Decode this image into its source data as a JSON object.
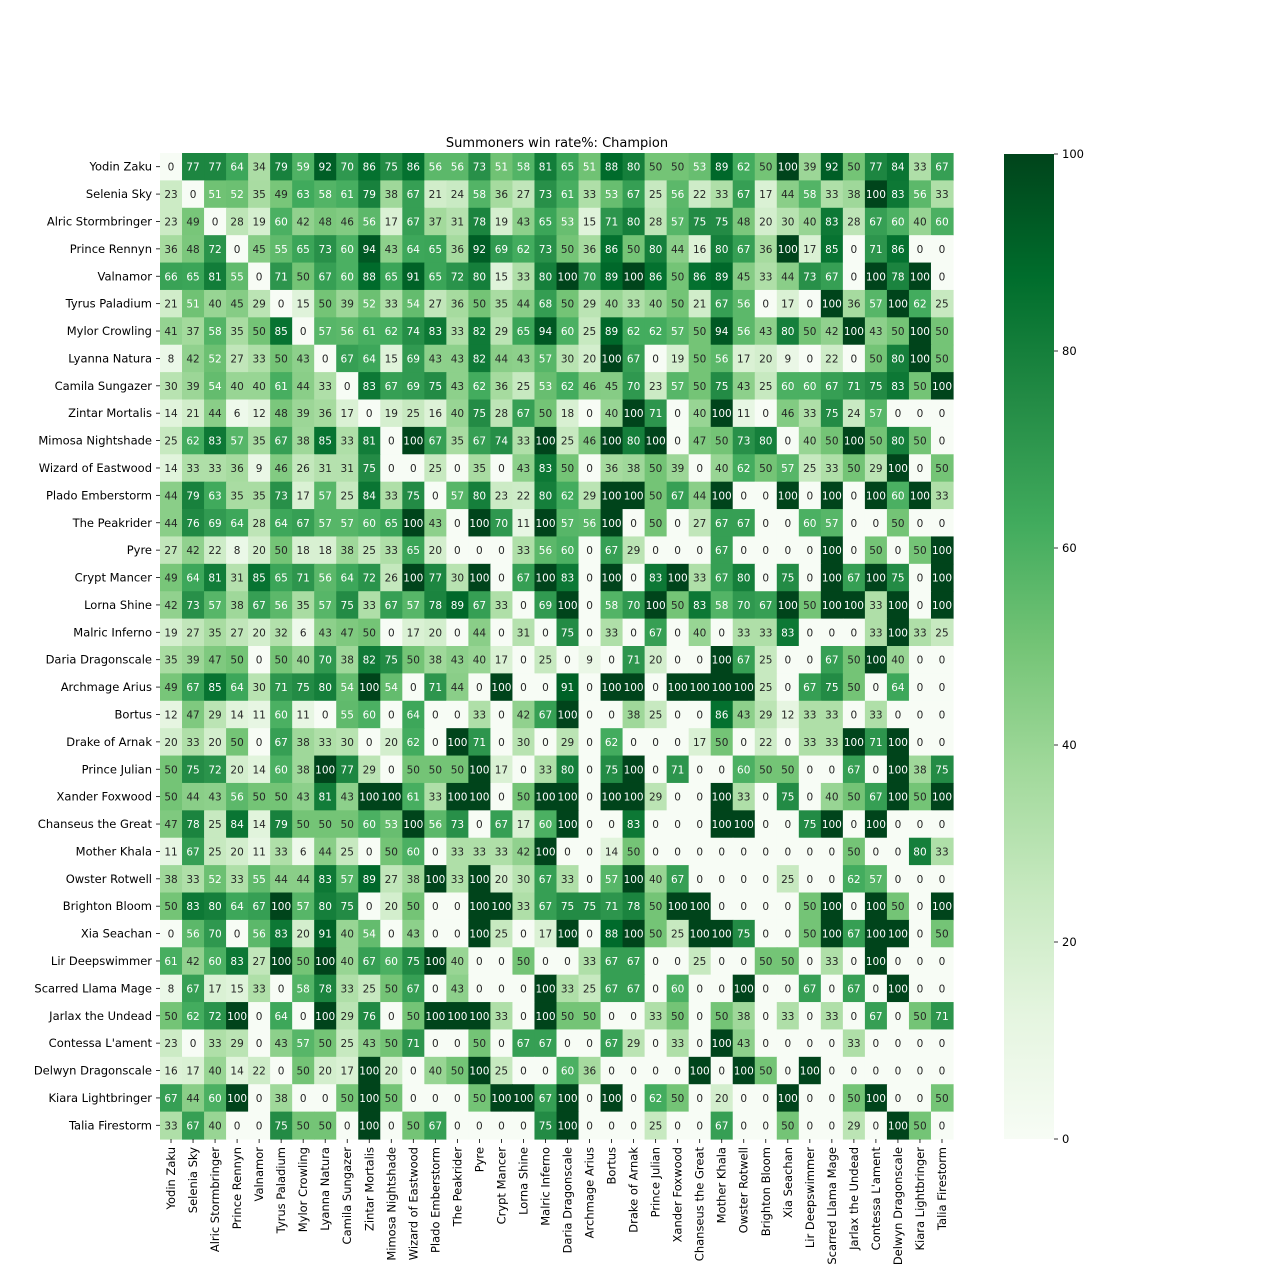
{
  "chart_data": {
    "type": "heatmap",
    "title": "Summoners win rate%: Champion",
    "xlabel": "",
    "ylabel": "",
    "rows": [
      "Yodin Zaku",
      "Selenia Sky",
      "Alric Stormbringer",
      "Prince Rennyn",
      "Valnamor",
      "Tyrus Paladium",
      "Mylor Crowling",
      "Lyanna Natura",
      "Camila Sungazer",
      "Zintar Mortalis",
      "Mimosa Nightshade",
      "Wizard of Eastwood",
      "Plado Emberstorm",
      "The Peakrider",
      "Pyre",
      "Crypt Mancer",
      "Lorna Shine",
      "Malric Inferno",
      "Daria Dragonscale",
      "Archmage Arius",
      "Bortus",
      "Drake of Arnak",
      "Prince Julian",
      "Xander Foxwood",
      "Chanseus the Great",
      "Mother Khala",
      "Owster Rotwell",
      "Brighton Bloom",
      "Xia Seachan",
      "Lir Deepswimmer",
      "Scarred Llama Mage",
      "Jarlax the Undead",
      "Contessa L'ament",
      "Delwyn Dragonscale",
      "Kiara Lightbringer",
      "Talia Firestorm"
    ],
    "columns": [
      "Yodin Zaku",
      "Selenia Sky",
      "Alric Stormbringer",
      "Prince Rennyn",
      "Valnamor",
      "Tyrus Paladium",
      "Mylor Crowling",
      "Lyanna Natura",
      "Camila Sungazer",
      "Zintar Mortalis",
      "Mimosa Nightshade",
      "Wizard of Eastwood",
      "Plado Emberstorm",
      "The Peakrider",
      "Pyre",
      "Crypt Mancer",
      "Lorna Shine",
      "Malric Inferno",
      "Daria Dragonscale",
      "Archmage Arius",
      "Bortus",
      "Drake of Arnak",
      "Prince Julian",
      "Xander Foxwood",
      "Chanseus the Great",
      "Mother Khala",
      "Owster Rotwell",
      "Brighton Bloom",
      "Xia Seachan",
      "Lir Deepswimmer",
      "Scarred Llama Mage",
      "Jarlax the Undead",
      "Contessa L'ament",
      "Delwyn Dragonscale",
      "Kiara Lightbringer",
      "Talia Firestorm"
    ],
    "values": [
      [
        0,
        77,
        77,
        64,
        34,
        79,
        59,
        92,
        70,
        86,
        75,
        86,
        56,
        56,
        73,
        51,
        58,
        81,
        65,
        51,
        88,
        80,
        50,
        50,
        53,
        89,
        62,
        50,
        100,
        39,
        92,
        50,
        77,
        84,
        33,
        67
      ],
      [
        23,
        0,
        51,
        52,
        35,
        49,
        63,
        58,
        61,
        79,
        38,
        67,
        21,
        24,
        58,
        36,
        27,
        73,
        61,
        33,
        53,
        67,
        25,
        56,
        22,
        33,
        67,
        17,
        44,
        58,
        33,
        38,
        100,
        83,
        56,
        33
      ],
      [
        23,
        49,
        0,
        28,
        19,
        60,
        42,
        48,
        46,
        56,
        17,
        67,
        37,
        31,
        78,
        19,
        43,
        65,
        53,
        15,
        71,
        80,
        28,
        57,
        75,
        75,
        48,
        20,
        30,
        40,
        83,
        28,
        67,
        60,
        40,
        60
      ],
      [
        36,
        48,
        72,
        0,
        45,
        55,
        65,
        73,
        60,
        94,
        43,
        64,
        65,
        36,
        92,
        69,
        62,
        73,
        50,
        36,
        86,
        50,
        80,
        44,
        16,
        80,
        67,
        36,
        100,
        17,
        85,
        0,
        71,
        86,
        0,
        0
      ],
      [
        66,
        65,
        81,
        55,
        0,
        71,
        50,
        67,
        60,
        88,
        65,
        91,
        65,
        72,
        80,
        15,
        33,
        80,
        100,
        70,
        89,
        100,
        86,
        50,
        86,
        89,
        45,
        33,
        44,
        73,
        67,
        0,
        100,
        78,
        100,
        0
      ],
      [
        21,
        51,
        40,
        45,
        29,
        0,
        15,
        50,
        39,
        52,
        33,
        54,
        27,
        36,
        50,
        35,
        44,
        68,
        50,
        29,
        40,
        33,
        40,
        50,
        21,
        67,
        56,
        0,
        17,
        0,
        100,
        36,
        57,
        100,
        62,
        25
      ],
      [
        41,
        37,
        58,
        35,
        50,
        85,
        0,
        57,
        56,
        61,
        62,
        74,
        83,
        33,
        82,
        29,
        65,
        94,
        60,
        25,
        89,
        62,
        62,
        57,
        50,
        94,
        56,
        43,
        80,
        50,
        42,
        100,
        43,
        50,
        100,
        50
      ],
      [
        8,
        42,
        52,
        27,
        33,
        50,
        43,
        0,
        67,
        64,
        15,
        69,
        43,
        43,
        82,
        44,
        43,
        57,
        30,
        20,
        100,
        67,
        0,
        19,
        50,
        56,
        17,
        20,
        9,
        0,
        22,
        0,
        50,
        80,
        100,
        50
      ],
      [
        30,
        39,
        54,
        40,
        40,
        61,
        44,
        33,
        0,
        83,
        67,
        69,
        75,
        43,
        62,
        36,
        25,
        53,
        62,
        46,
        45,
        70,
        23,
        57,
        50,
        75,
        43,
        25,
        60,
        60,
        67,
        71,
        75,
        83,
        50,
        100
      ],
      [
        14,
        21,
        44,
        6,
        12,
        48,
        39,
        36,
        17,
        0,
        19,
        25,
        16,
        40,
        75,
        28,
        67,
        50,
        18,
        0,
        40,
        100,
        71,
        0,
        40,
        100,
        11,
        0,
        46,
        33,
        75,
        24,
        57,
        0,
        0,
        0
      ],
      [
        25,
        62,
        83,
        57,
        35,
        67,
        38,
        85,
        33,
        81,
        0,
        100,
        67,
        35,
        67,
        74,
        33,
        100,
        25,
        46,
        100,
        80,
        100,
        0,
        47,
        50,
        73,
        80,
        0,
        40,
        50,
        100,
        50,
        80,
        50,
        0
      ],
      [
        14,
        33,
        33,
        36,
        9,
        46,
        26,
        31,
        31,
        75,
        0,
        0,
        25,
        0,
        35,
        0,
        43,
        83,
        50,
        0,
        36,
        38,
        50,
        39,
        0,
        40,
        62,
        50,
        57,
        25,
        33,
        50,
        29,
        100,
        0,
        50
      ],
      [
        44,
        79,
        63,
        35,
        35,
        73,
        17,
        57,
        25,
        84,
        33,
        75,
        0,
        57,
        80,
        23,
        22,
        80,
        62,
        29,
        100,
        100,
        50,
        67,
        44,
        100,
        0,
        0,
        100,
        0,
        100,
        0,
        100,
        60,
        100,
        33
      ],
      [
        44,
        76,
        69,
        64,
        28,
        64,
        67,
        57,
        57,
        60,
        65,
        100,
        43,
        0,
        100,
        70,
        11,
        100,
        57,
        56,
        100,
        0,
        50,
        0,
        27,
        67,
        67,
        0,
        0,
        60,
        57,
        0,
        0,
        50,
        0,
        0
      ],
      [
        27,
        42,
        22,
        8,
        20,
        50,
        18,
        18,
        38,
        25,
        33,
        65,
        20,
        0,
        0,
        0,
        33,
        56,
        60,
        0,
        67,
        29,
        0,
        0,
        0,
        67,
        0,
        0,
        0,
        0,
        100,
        0,
        50,
        0,
        50,
        100
      ],
      [
        49,
        64,
        81,
        31,
        85,
        65,
        71,
        56,
        64,
        72,
        26,
        100,
        77,
        30,
        100,
        0,
        67,
        100,
        83,
        0,
        100,
        0,
        83,
        100,
        33,
        67,
        80,
        0,
        75,
        0,
        100,
        67,
        100,
        75,
        0,
        100
      ],
      [
        42,
        73,
        57,
        38,
        67,
        56,
        35,
        57,
        75,
        33,
        67,
        57,
        78,
        89,
        67,
        33,
        0,
        69,
        100,
        0,
        58,
        70,
        100,
        50,
        83,
        58,
        70,
        67,
        100,
        50,
        100,
        100,
        33,
        100,
        0,
        100
      ],
      [
        19,
        27,
        35,
        27,
        20,
        32,
        6,
        43,
        47,
        50,
        0,
        17,
        20,
        0,
        44,
        0,
        31,
        0,
        75,
        0,
        33,
        0,
        67,
        0,
        40,
        0,
        33,
        33,
        83,
        0,
        0,
        0,
        33,
        100,
        33,
        25
      ],
      [
        35,
        39,
        47,
        50,
        0,
        50,
        40,
        70,
        38,
        82,
        75,
        50,
        38,
        43,
        40,
        17,
        0,
        25,
        0,
        9,
        0,
        71,
        20,
        0,
        0,
        100,
        67,
        25,
        0,
        0,
        67,
        50,
        100,
        40,
        0,
        0
      ],
      [
        49,
        67,
        85,
        64,
        30,
        71,
        75,
        80,
        54,
        100,
        54,
        0,
        71,
        44,
        0,
        100,
        0,
        0,
        91,
        0,
        100,
        100,
        0,
        100,
        100,
        100,
        100,
        25,
        0,
        67,
        75,
        50,
        0,
        64,
        0,
        0
      ],
      [
        12,
        47,
        29,
        14,
        11,
        60,
        11,
        0,
        55,
        60,
        0,
        64,
        0,
        0,
        33,
        0,
        42,
        67,
        100,
        0,
        0,
        38,
        25,
        0,
        0,
        86,
        43,
        29,
        12,
        33,
        33,
        0,
        33,
        0,
        0,
        0
      ],
      [
        20,
        33,
        20,
        50,
        0,
        67,
        38,
        33,
        30,
        0,
        20,
        62,
        0,
        100,
        71,
        0,
        30,
        0,
        29,
        0,
        62,
        0,
        0,
        0,
        17,
        50,
        0,
        22,
        0,
        33,
        33,
        100,
        71,
        100,
        0,
        0
      ],
      [
        50,
        75,
        72,
        20,
        14,
        60,
        38,
        100,
        77,
        29,
        0,
        50,
        50,
        50,
        100,
        17,
        0,
        33,
        80,
        0,
        75,
        100,
        0,
        71,
        0,
        0,
        60,
        50,
        50,
        0,
        0,
        67,
        0,
        100,
        38,
        75
      ],
      [
        50,
        44,
        43,
        56,
        50,
        50,
        43,
        81,
        43,
        100,
        100,
        61,
        33,
        100,
        100,
        0,
        50,
        100,
        100,
        0,
        100,
        100,
        29,
        0,
        0,
        100,
        33,
        0,
        75,
        0,
        40,
        50,
        67,
        100,
        50,
        100
      ],
      [
        47,
        78,
        25,
        84,
        14,
        79,
        50,
        50,
        50,
        60,
        53,
        100,
        56,
        73,
        0,
        67,
        17,
        60,
        100,
        0,
        0,
        83,
        0,
        0,
        0,
        100,
        100,
        0,
        0,
        75,
        100,
        0,
        100,
        0,
        0,
        0
      ],
      [
        11,
        67,
        25,
        20,
        11,
        33,
        6,
        44,
        25,
        0,
        50,
        60,
        0,
        33,
        33,
        33,
        42,
        100,
        0,
        0,
        14,
        50,
        0,
        0,
        0,
        0,
        0,
        0,
        0,
        0,
        0,
        50,
        0,
        0,
        80,
        33
      ],
      [
        38,
        33,
        52,
        33,
        55,
        44,
        44,
        83,
        57,
        89,
        27,
        38,
        100,
        33,
        100,
        20,
        30,
        67,
        33,
        0,
        57,
        100,
        40,
        67,
        0,
        0,
        0,
        0,
        25,
        0,
        0,
        62,
        57,
        0,
        0,
        0
      ],
      [
        50,
        83,
        80,
        64,
        67,
        100,
        57,
        80,
        75,
        0,
        20,
        50,
        0,
        0,
        100,
        100,
        33,
        67,
        75,
        75,
        71,
        78,
        50,
        100,
        100,
        0,
        0,
        0,
        0,
        50,
        100,
        0,
        100,
        50,
        0,
        100
      ],
      [
        0,
        56,
        70,
        0,
        56,
        83,
        20,
        91,
        40,
        54,
        0,
        43,
        0,
        0,
        100,
        25,
        0,
        17,
        100,
        0,
        88,
        100,
        50,
        25,
        100,
        100,
        75,
        0,
        0,
        50,
        100,
        67,
        100,
        100,
        0,
        50
      ],
      [
        61,
        42,
        60,
        83,
        27,
        100,
        50,
        100,
        40,
        67,
        60,
        75,
        100,
        40,
        0,
        0,
        50,
        0,
        0,
        33,
        67,
        67,
        0,
        0,
        25,
        0,
        0,
        50,
        50,
        0,
        33,
        0,
        100,
        0,
        0,
        0
      ],
      [
        8,
        67,
        17,
        15,
        33,
        0,
        58,
        78,
        33,
        25,
        50,
        67,
        0,
        43,
        0,
        0,
        0,
        100,
        33,
        25,
        67,
        67,
        0,
        60,
        0,
        0,
        100,
        0,
        0,
        67,
        0,
        67,
        0,
        100,
        0,
        0
      ],
      [
        50,
        62,
        72,
        100,
        0,
        64,
        0,
        100,
        29,
        76,
        0,
        50,
        100,
        100,
        100,
        33,
        0,
        100,
        50,
        50,
        0,
        0,
        33,
        50,
        0,
        50,
        38,
        0,
        33,
        0,
        33,
        0,
        67,
        0,
        50,
        71
      ],
      [
        23,
        0,
        33,
        29,
        0,
        43,
        57,
        50,
        25,
        43,
        50,
        71,
        0,
        0,
        50,
        0,
        67,
        67,
        0,
        0,
        67,
        29,
        0,
        33,
        0,
        100,
        43,
        0,
        0,
        0,
        0,
        33,
        0,
        0,
        0,
        0
      ],
      [
        16,
        17,
        40,
        14,
        22,
        0,
        50,
        20,
        17,
        100,
        20,
        0,
        40,
        50,
        100,
        25,
        0,
        0,
        60,
        36,
        0,
        0,
        0,
        0,
        100,
        0,
        100,
        50,
        0,
        100,
        0,
        0,
        0,
        0,
        0,
        0
      ],
      [
        67,
        44,
        60,
        100,
        0,
        38,
        0,
        0,
        50,
        100,
        50,
        0,
        0,
        0,
        50,
        100,
        100,
        67,
        100,
        0,
        100,
        0,
        62,
        50,
        0,
        20,
        0,
        0,
        100,
        0,
        0,
        50,
        100,
        0,
        0,
        50
      ],
      [
        33,
        67,
        40,
        0,
        0,
        75,
        50,
        50,
        0,
        100,
        0,
        50,
        67,
        0,
        0,
        0,
        0,
        75,
        100,
        0,
        0,
        0,
        25,
        0,
        0,
        67,
        0,
        0,
        50,
        0,
        0,
        29,
        0,
        100,
        50,
        0
      ]
    ],
    "vmin": 0,
    "vmax": 100,
    "colormap": "Greens",
    "colorbar_ticks": [
      0,
      20,
      40,
      60,
      80,
      100
    ],
    "annotations": true,
    "grid": false,
    "legend": "colorbar-right"
  }
}
